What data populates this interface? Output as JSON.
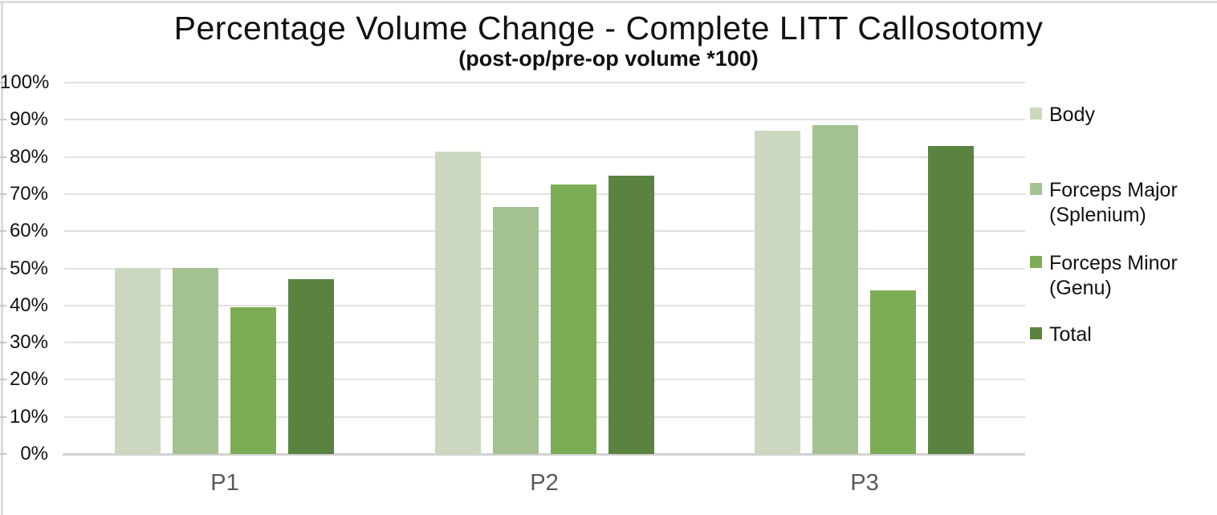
{
  "chart_data": {
    "type": "bar",
    "title": "Percentage Volume Change - Complete LITT Callosotomy",
    "subtitle": "(post-op/pre-op volume *100)",
    "categories": [
      "P1",
      "P2",
      "P3"
    ],
    "series": [
      {
        "name": "Body",
        "legend_lines": [
          "Body"
        ],
        "color": "#cbd8bf",
        "values": [
          50,
          81.5,
          87
        ]
      },
      {
        "name": "Forceps Major (Splenium)",
        "legend_lines": [
          "Forceps Major",
          "(Splenium)"
        ],
        "color": "#a4c291",
        "values": [
          50,
          66.5,
          88.5
        ]
      },
      {
        "name": "Forceps Minor (Genu)",
        "legend_lines": [
          "Forceps Minor",
          "(Genu)"
        ],
        "color": "#7cad55",
        "values": [
          39.5,
          72.5,
          44
        ]
      },
      {
        "name": "Total",
        "legend_lines": [
          "Total"
        ],
        "color": "#5a8340",
        "values": [
          47,
          75,
          83
        ]
      }
    ],
    "ylabel": "",
    "xlabel": "",
    "ylim": [
      0,
      100
    ],
    "ytick_labels": [
      "0%",
      "10%",
      "20%",
      "30%",
      "40%",
      "50%",
      "60%",
      "70%",
      "80%",
      "90%",
      "100%"
    ],
    "grid": true,
    "legend_position": "right",
    "colors": {
      "gridline": "#e1e1e1",
      "axis_line": "#d2d2d2",
      "frame": "#dcdcdc",
      "category_label": "#595959",
      "text": "#111111"
    }
  }
}
